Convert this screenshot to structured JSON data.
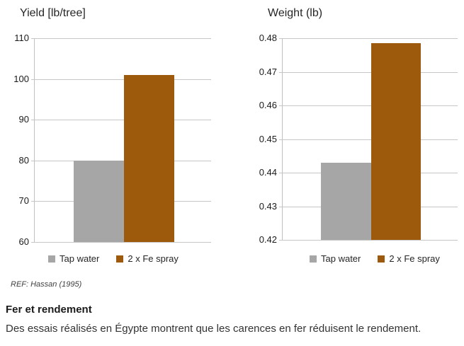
{
  "chart_data": [
    {
      "type": "bar",
      "title": "Yield [lb/tree]",
      "categories": [
        "Tap water",
        "2 x Fe spray"
      ],
      "values": [
        80,
        101
      ],
      "colors": [
        "#a6a6a6",
        "#9d5a0c"
      ],
      "ylim": [
        60,
        110
      ],
      "ytick_step": 10,
      "tick_decimals": 0,
      "xlabel": "",
      "ylabel": "Yield [lb/tree]",
      "grid": true,
      "legend_position": "bottom",
      "legend": [
        {
          "label": "Tap water",
          "color": "#a6a6a6"
        },
        {
          "label": "2 x Fe spray",
          "color": "#9d5a0c"
        }
      ]
    },
    {
      "type": "bar",
      "title": "Weight (lb)",
      "categories": [
        "Tap water",
        "2 x Fe spray"
      ],
      "values": [
        0.443,
        0.4785
      ],
      "colors": [
        "#a6a6a6",
        "#9d5a0c"
      ],
      "ylim": [
        0.42,
        0.48
      ],
      "ytick_step": 0.01,
      "tick_decimals": 2,
      "xlabel": "",
      "ylabel": "Weight (lb)",
      "grid": true,
      "legend_position": "bottom",
      "legend": [
        {
          "label": "Tap water",
          "color": "#a6a6a6"
        },
        {
          "label": "2 x Fe spray",
          "color": "#9d5a0c"
        }
      ]
    }
  ],
  "ref_note": "REF: Hassan (1995)",
  "caption": {
    "heading": "Fer et rendement",
    "body": "Des essais réalisés en Égypte montrent que les carences en fer réduisent le rendement."
  },
  "colors": {
    "bar_gray": "#a6a6a6",
    "bar_brown": "#9d5a0c",
    "gridline": "#c6c6c6"
  }
}
